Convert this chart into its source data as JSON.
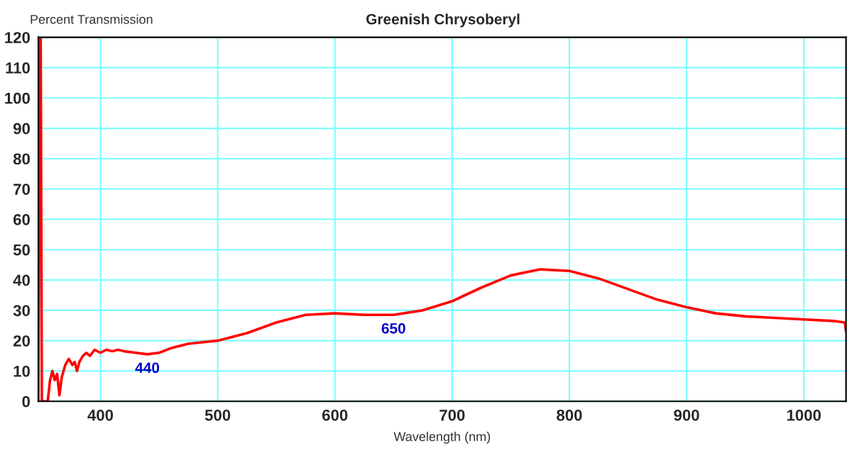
{
  "chart_data": {
    "type": "line",
    "title": "Greenish Chrysoberyl",
    "xlabel": "Wavelength (nm)",
    "ylabel": "Percent Transmission",
    "series": [
      {
        "color": "#ff0000",
        "x": [
          347,
          348,
          349,
          350,
          355,
          357,
          359,
          361,
          363,
          365,
          367,
          370,
          373,
          376,
          378,
          380,
          382,
          385,
          388,
          391,
          395,
          400,
          405,
          410,
          415,
          420,
          430,
          440,
          450,
          460,
          475,
          500,
          525,
          550,
          575,
          600,
          625,
          650,
          675,
          700,
          725,
          750,
          775,
          800,
          825,
          850,
          875,
          900,
          925,
          950,
          975,
          1000,
          1025,
          1035,
          1036
        ],
        "values": [
          0,
          120,
          120,
          0,
          0,
          7,
          10,
          7,
          9,
          2,
          8,
          12,
          14,
          12,
          13,
          10,
          13,
          15,
          16,
          15,
          17,
          16,
          17,
          16.5,
          17,
          16.5,
          16,
          15.5,
          16,
          17.5,
          19,
          20,
          22.5,
          26,
          28.5,
          29,
          28.5,
          28.5,
          30,
          33,
          37.5,
          41.5,
          43.5,
          43,
          40.5,
          37,
          33.5,
          31,
          29,
          28,
          27.5,
          27,
          26.5,
          26,
          23
        ]
      }
    ],
    "annotations": [
      {
        "text": "440",
        "x": 440,
        "y": 15.5
      },
      {
        "text": "650",
        "x": 650,
        "y": 28.5
      }
    ],
    "xlim": [
      347,
      1036
    ],
    "xticks": [
      400,
      500,
      600,
      700,
      800,
      900,
      1000
    ],
    "ylim": [
      0,
      120
    ],
    "yticks": [
      0,
      10,
      20,
      30,
      40,
      50,
      60,
      70,
      80,
      90,
      100,
      110,
      120
    ],
    "grid": true,
    "legend": false
  }
}
